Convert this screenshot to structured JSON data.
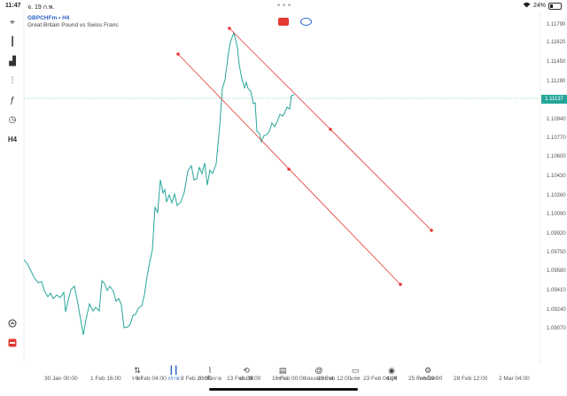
{
  "status": {
    "time": "11:47",
    "date": "จ. 19 ก.พ.",
    "battery": "24%",
    "battery_level": 0.24
  },
  "chart": {
    "symbol": "GBPCHFm • H4",
    "description": "Great Britain Pound vs Swiss Franc",
    "current_price": "1.11137",
    "price_labels": [
      "1.11790",
      "1.11620",
      "1.11450",
      "1.11280",
      "1.10940",
      "1.10770",
      "1.10600",
      "1.10430",
      "1.10260",
      "1.10090",
      "1.09920",
      "1.09750",
      "1.09580",
      "1.09410",
      "1.09240",
      "1.09070"
    ],
    "time_labels": [
      "30 Jan 00:00",
      "1 Feb 16:00",
      "6 Feb 04:00",
      "8 Feb 20:00",
      "13 Feb 08:00",
      "16 Feb 00:00",
      "20 Feb 12:00",
      "23 Feb 04:00",
      "25 Feb 20:00",
      "28 Feb 12:00",
      "2 Mar 04:00"
    ]
  },
  "toolbar": {
    "items": [
      {
        "name": "crosshair-icon",
        "glyph": "⌖"
      },
      {
        "name": "candlestick-icon",
        "glyph": "┃"
      },
      {
        "name": "bar-chart-icon",
        "glyph": "▟"
      },
      {
        "name": "indicators-icon",
        "glyph": "⫶"
      },
      {
        "name": "function-icon",
        "glyph": "ƒ"
      },
      {
        "name": "objects-icon",
        "glyph": "◷"
      },
      {
        "name": "timeframe-button",
        "glyph": "H4"
      }
    ]
  },
  "tabs": [
    {
      "name": "tab-quotes",
      "label": "ราคา",
      "glyph": "⇅",
      "active": false
    },
    {
      "name": "tab-chart",
      "label": "กราฟ",
      "glyph": "┃┃",
      "active": true
    },
    {
      "name": "tab-trade",
      "label": "การซื้อขาย",
      "glyph": "⌇",
      "active": false
    },
    {
      "name": "tab-history",
      "label": "ประวัติ",
      "glyph": "⟲",
      "active": false
    },
    {
      "name": "tab-news",
      "label": "ข่าว",
      "glyph": "▤",
      "active": false
    },
    {
      "name": "tab-mailbox",
      "label": "กล่องจดหมาย",
      "glyph": "@",
      "active": false
    },
    {
      "name": "tab-chat",
      "label": "แชท",
      "glyph": "▭",
      "active": false
    },
    {
      "name": "tab-account",
      "label": "บัญชี",
      "glyph": "◉",
      "active": false
    },
    {
      "name": "tab-settings",
      "label": "การตั้งค่า",
      "glyph": "⚙",
      "active": false
    }
  ],
  "colors": {
    "line": "#26a69a",
    "channel": "#e53935",
    "accent": "#2962c9"
  }
}
